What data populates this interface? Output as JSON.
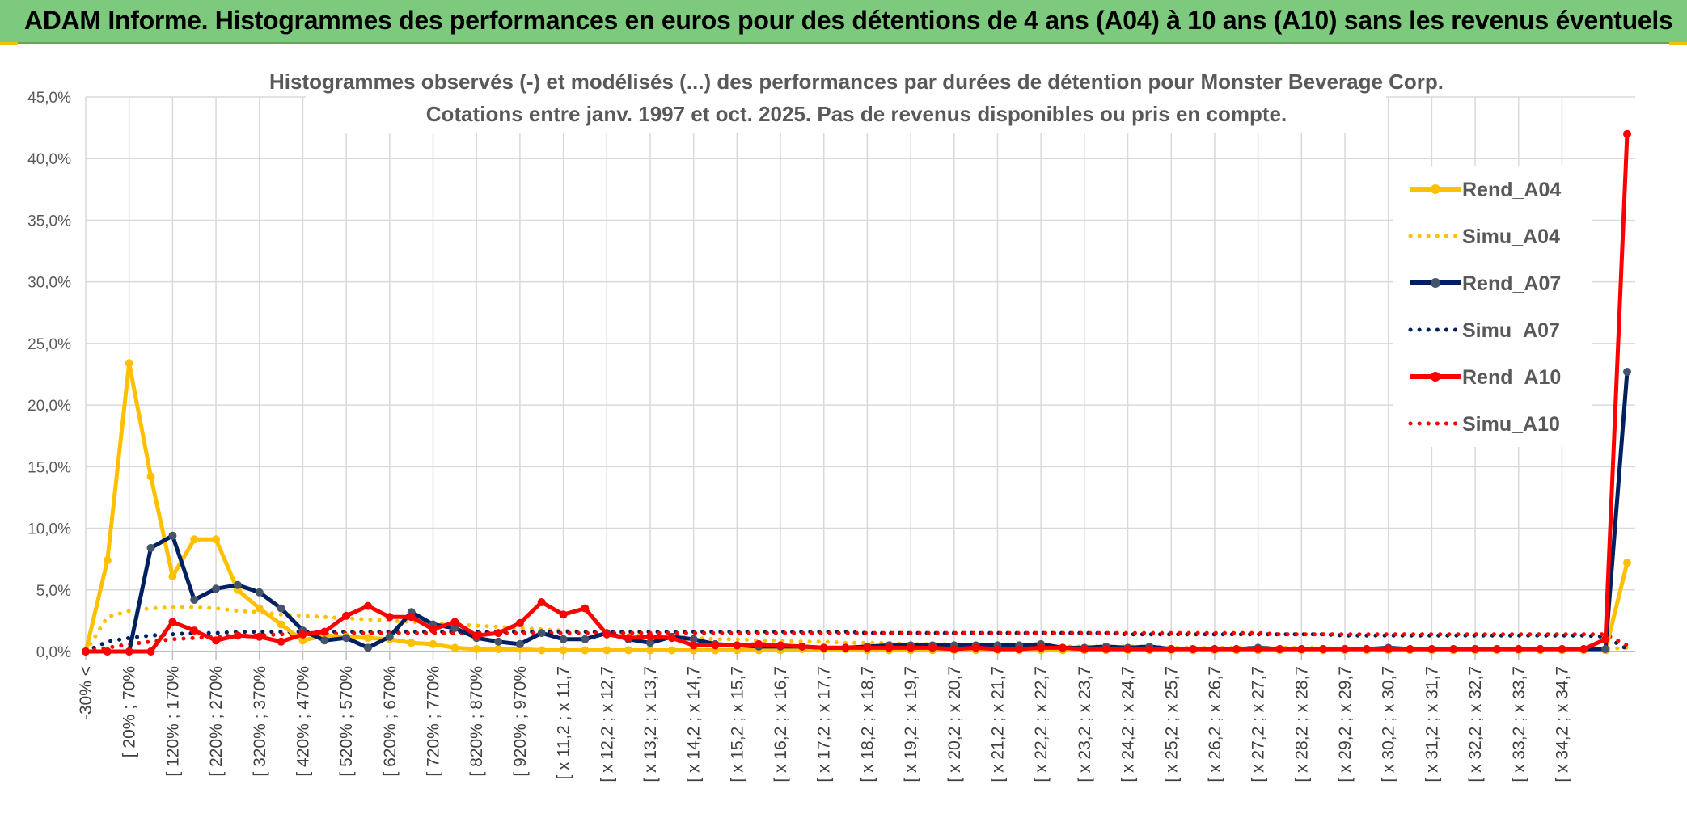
{
  "banner": {
    "title": "ADAM Informe. Histogrammes des performances en euros pour des détentions de 4 ans (A04) à 10 ans (A10) sans les revenus éventuels",
    "background": "#7dc97d"
  },
  "chart_data": {
    "type": "line",
    "title": "Histogrammes observés (-) et modélisés (...) des performances par durées de détention pour Monster Beverage Corp.",
    "subtitle": "Cotations entre janv. 1997 et oct. 2025. Pas de revenus disponibles ou pris en compte.",
    "xlabel": "",
    "ylabel": "",
    "ylim": [
      0,
      45
    ],
    "y_ticks": [
      "0,0%",
      "5,0%",
      "10,0%",
      "15,0%",
      "20,0%",
      "25,0%",
      "30,0%",
      "35,0%",
      "40,0%",
      "45,0%"
    ],
    "grid": true,
    "legend_position": "right",
    "x_tick_labels": [
      "-30% <",
      "[ 20% ; 70%",
      "[ 120% ; 170%",
      "[ 220% ; 270%",
      "[ 320% ; 370%",
      "[ 420% ; 470%",
      "[ 520% ; 570%",
      "[ 620% ; 670%",
      "[ 720% ; 770%",
      "[ 820% ; 870%",
      "[ 920% ; 970%",
      "[ x 11,2 ; x 11,7",
      "[ x 12,2 ; x 12,7",
      "[ x 13,2 ; x 13,7",
      "[ x 14,2 ; x 14,7",
      "[ x 15,2 ; x 15,7",
      "[ x 16,2 ; x 16,7",
      "[ x 17,2 ; x 17,7",
      "[ x 18,2 ; x 18,7",
      "[ x 19,2 ; x 19,7",
      "[ x 20,2 ; x 20,7",
      "[ x 21,2 ; x 21,7",
      "[ x 22,2 ; x 22,7",
      "[ x 23,2 ; x 23,7",
      "[ x 24,2 ; x 24,7",
      "[ x 25,2 ; x 25,7",
      "[ x 26,2 ; x 26,7",
      "[ x 27,2 ; x 27,7",
      "[ x 28,2 ; x 28,7",
      "[ x 29,2 ; x 29,7",
      "[ x 30,2 ; x 30,7",
      "[ x 31,2 ; x 31,7",
      "[ x 32,2 ; x 32,7",
      "[ x 33,2 ; x 33,7",
      "[ x 34,2 ; x 34,7"
    ],
    "series": [
      {
        "name": "Rend_A04",
        "color": "#ffc000",
        "style": "solid",
        "markers": true,
        "values": [
          0.0,
          7.4,
          23.4,
          14.2,
          6.1,
          9.1,
          9.1,
          5.0,
          3.5,
          2.2,
          0.9,
          1.3,
          1.2,
          1.1,
          1.0,
          0.7,
          0.6,
          0.3,
          0.2,
          0.2,
          0.2,
          0.1,
          0.1,
          0.1,
          0.1,
          0.1,
          0.1,
          0.1,
          0.1,
          0.1,
          0.1,
          0.1,
          0.1,
          0.2,
          0.2,
          0.2,
          0.1,
          0.1,
          0.1,
          0.1,
          0.1,
          0.1,
          0.1,
          0.1,
          0.1,
          0.1,
          0.1,
          0.1,
          0.1,
          0.1,
          0.1,
          0.1,
          0.1,
          0.1,
          0.1,
          0.1,
          0.1,
          0.1,
          0.1,
          0.1,
          0.1,
          0.1,
          0.1,
          0.1,
          0.1,
          0.1,
          0.1,
          0.1,
          0.1,
          0.1,
          0.1,
          7.2
        ]
      },
      {
        "name": "Simu_A04",
        "color": "#ffc000",
        "style": "dotted",
        "markers": false,
        "values": [
          0.0,
          2.8,
          3.3,
          3.5,
          3.6,
          3.6,
          3.5,
          3.3,
          3.2,
          3.0,
          2.9,
          2.8,
          2.7,
          2.6,
          2.5,
          2.4,
          2.3,
          2.2,
          2.1,
          2.0,
          1.9,
          1.8,
          1.7,
          1.6,
          1.5,
          1.4,
          1.3,
          1.2,
          1.1,
          1.0,
          1.0,
          0.9,
          0.9,
          0.8,
          0.8,
          0.7,
          0.7,
          0.7,
          0.6,
          0.6,
          0.6,
          0.5,
          0.5,
          0.5,
          0.5,
          0.4,
          0.4,
          0.4,
          0.4,
          0.4,
          0.3,
          0.3,
          0.3,
          0.3,
          0.3,
          0.3,
          0.3,
          0.3,
          0.2,
          0.2,
          0.2,
          0.2,
          0.2,
          0.2,
          0.2,
          0.2,
          0.2,
          0.2,
          0.2,
          0.2,
          0.2,
          0.3
        ]
      },
      {
        "name": "Rend_A07",
        "color": "#002060",
        "style": "solid",
        "markers": true,
        "values": [
          0.0,
          0.0,
          0.0,
          8.4,
          9.4,
          4.2,
          5.1,
          5.4,
          4.8,
          3.5,
          1.7,
          0.9,
          1.1,
          0.3,
          1.2,
          3.2,
          2.2,
          1.9,
          1.1,
          0.8,
          0.6,
          1.5,
          1.0,
          1.0,
          1.5,
          1.0,
          0.7,
          1.2,
          1.0,
          0.6,
          0.5,
          0.4,
          0.4,
          0.4,
          0.3,
          0.3,
          0.4,
          0.5,
          0.5,
          0.5,
          0.5,
          0.5,
          0.5,
          0.5,
          0.6,
          0.3,
          0.3,
          0.4,
          0.3,
          0.4,
          0.2,
          0.2,
          0.2,
          0.2,
          0.3,
          0.2,
          0.2,
          0.2,
          0.2,
          0.2,
          0.3,
          0.2,
          0.2,
          0.2,
          0.2,
          0.2,
          0.2,
          0.2,
          0.2,
          0.2,
          0.2,
          22.7
        ]
      },
      {
        "name": "Simu_A07",
        "color": "#002060",
        "style": "dotted",
        "markers": false,
        "values": [
          0.0,
          0.8,
          1.1,
          1.3,
          1.4,
          1.5,
          1.5,
          1.6,
          1.6,
          1.6,
          1.6,
          1.6,
          1.6,
          1.6,
          1.6,
          1.6,
          1.6,
          1.6,
          1.6,
          1.6,
          1.6,
          1.6,
          1.6,
          1.6,
          1.6,
          1.6,
          1.6,
          1.6,
          1.6,
          1.6,
          1.6,
          1.6,
          1.6,
          1.6,
          1.6,
          1.6,
          1.5,
          1.5,
          1.5,
          1.5,
          1.5,
          1.5,
          1.5,
          1.5,
          1.5,
          1.5,
          1.5,
          1.5,
          1.4,
          1.4,
          1.4,
          1.4,
          1.4,
          1.4,
          1.4,
          1.4,
          1.4,
          1.4,
          1.3,
          1.3,
          1.3,
          1.3,
          1.3,
          1.3,
          1.3,
          1.3,
          1.3,
          1.3,
          1.3,
          1.3,
          1.2,
          0.2
        ]
      },
      {
        "name": "Rend_A10",
        "color": "#ff0000",
        "style": "solid",
        "markers": true,
        "values": [
          0.0,
          0.0,
          0.0,
          0.0,
          2.4,
          1.7,
          0.9,
          1.3,
          1.2,
          0.8,
          1.4,
          1.6,
          2.9,
          3.7,
          2.8,
          2.8,
          1.8,
          2.4,
          1.3,
          1.5,
          2.3,
          4.0,
          3.0,
          3.5,
          1.4,
          1.1,
          1.2,
          1.1,
          0.5,
          0.5,
          0.5,
          0.6,
          0.5,
          0.4,
          0.3,
          0.3,
          0.3,
          0.3,
          0.3,
          0.3,
          0.2,
          0.3,
          0.2,
          0.2,
          0.3,
          0.3,
          0.2,
          0.2,
          0.2,
          0.2,
          0.2,
          0.2,
          0.2,
          0.2,
          0.2,
          0.2,
          0.2,
          0.2,
          0.2,
          0.2,
          0.2,
          0.2,
          0.2,
          0.2,
          0.2,
          0.2,
          0.2,
          0.2,
          0.2,
          0.2,
          1.0,
          42.0
        ]
      },
      {
        "name": "Simu_A10",
        "color": "#ff0000",
        "style": "dotted",
        "markers": false,
        "values": [
          0.0,
          0.3,
          0.6,
          0.8,
          1.0,
          1.1,
          1.2,
          1.3,
          1.3,
          1.4,
          1.4,
          1.4,
          1.5,
          1.5,
          1.5,
          1.5,
          1.5,
          1.5,
          1.5,
          1.5,
          1.5,
          1.5,
          1.5,
          1.5,
          1.5,
          1.5,
          1.5,
          1.5,
          1.5,
          1.5,
          1.5,
          1.5,
          1.5,
          1.5,
          1.5,
          1.5,
          1.5,
          1.5,
          1.5,
          1.5,
          1.5,
          1.5,
          1.5,
          1.5,
          1.5,
          1.5,
          1.5,
          1.5,
          1.5,
          1.5,
          1.5,
          1.5,
          1.5,
          1.5,
          1.5,
          1.4,
          1.4,
          1.4,
          1.4,
          1.4,
          1.4,
          1.4,
          1.4,
          1.4,
          1.4,
          1.4,
          1.4,
          1.4,
          1.4,
          1.4,
          1.4,
          0.5
        ]
      }
    ]
  }
}
